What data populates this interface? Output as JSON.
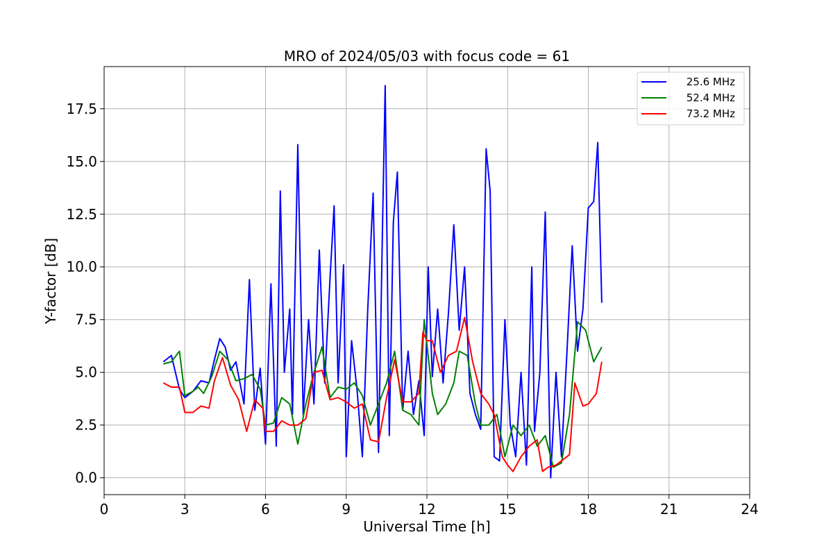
{
  "chart_data": {
    "type": "line",
    "title": "MRO of 2024/05/03 with focus code = 61",
    "xlabel": "Universal Time [h]",
    "ylabel": "Y-factor [dB]",
    "xlim": [
      0,
      24
    ],
    "ylim": [
      -0.8,
      19.5
    ],
    "xticks": [
      0,
      3,
      6,
      9,
      12,
      15,
      18,
      21,
      24
    ],
    "yticks": [
      0.0,
      2.5,
      5.0,
      7.5,
      10.0,
      12.5,
      15.0,
      17.5
    ],
    "xtick_labels": [
      "0",
      "3",
      "6",
      "9",
      "12",
      "15",
      "18",
      "21",
      "24"
    ],
    "ytick_labels": [
      "0.0",
      "2.5",
      "5.0",
      "7.5",
      "10.0",
      "12.5",
      "15.0",
      "17.5"
    ],
    "grid": true,
    "legend_position": "top-right",
    "series": [
      {
        "name": "25.6 MHz",
        "color": "#0000ff",
        "x": [
          2.2,
          2.5,
          2.8,
          3.0,
          3.3,
          3.6,
          3.9,
          4.1,
          4.3,
          4.5,
          4.7,
          4.9,
          5.2,
          5.4,
          5.6,
          5.8,
          6.0,
          6.2,
          6.4,
          6.55,
          6.7,
          6.9,
          7.0,
          7.2,
          7.4,
          7.6,
          7.8,
          8.0,
          8.2,
          8.4,
          8.55,
          8.7,
          8.9,
          9.0,
          9.2,
          9.4,
          9.6,
          9.8,
          10.0,
          10.2,
          10.35,
          10.45,
          10.6,
          10.75,
          10.9,
          11.1,
          11.3,
          11.5,
          11.7,
          11.9,
          12.05,
          12.2,
          12.4,
          12.6,
          12.8,
          13.0,
          13.2,
          13.4,
          13.6,
          13.8,
          14.0,
          14.2,
          14.35,
          14.5,
          14.7,
          14.9,
          15.1,
          15.3,
          15.5,
          15.7,
          15.9,
          16.0,
          16.2,
          16.4,
          16.6,
          16.8,
          17.0,
          17.2,
          17.4,
          17.6,
          17.8,
          18.0,
          18.2,
          18.35,
          18.5
        ],
        "y": [
          5.5,
          5.8,
          4.2,
          3.8,
          4.1,
          4.6,
          4.5,
          5.6,
          6.6,
          6.2,
          5.1,
          5.5,
          3.5,
          9.4,
          3.2,
          5.2,
          1.6,
          9.2,
          1.5,
          13.6,
          5.0,
          8.0,
          3.0,
          15.8,
          3.0,
          7.5,
          3.5,
          10.8,
          4.5,
          9.5,
          12.9,
          4.5,
          10.1,
          1.0,
          6.5,
          4.2,
          1.0,
          8.0,
          13.5,
          1.2,
          12.0,
          18.6,
          2.0,
          12.1,
          14.5,
          3.2,
          6.0,
          3.0,
          4.6,
          2.0,
          10.0,
          4.8,
          8.0,
          4.5,
          7.8,
          12.0,
          7.0,
          10.0,
          4.0,
          3.0,
          2.3,
          15.6,
          13.6,
          1.0,
          0.8,
          7.5,
          2.5,
          1.0,
          5.0,
          0.6,
          10.0,
          2.2,
          5.0,
          12.6,
          0.0,
          5.0,
          1.0,
          5.8,
          11.0,
          6.0,
          8.0,
          12.8,
          13.1,
          15.9,
          8.3
        ]
      },
      {
        "name": "52.4 MHz",
        "color": "#008000",
        "x": [
          2.2,
          2.5,
          2.8,
          3.0,
          3.3,
          3.5,
          3.7,
          4.0,
          4.3,
          4.6,
          4.9,
          5.2,
          5.5,
          5.8,
          6.0,
          6.3,
          6.6,
          6.9,
          7.2,
          7.5,
          7.8,
          8.1,
          8.4,
          8.7,
          9.0,
          9.3,
          9.6,
          9.9,
          10.2,
          10.5,
          10.8,
          11.1,
          11.4,
          11.7,
          11.9,
          12.2,
          12.4,
          12.7,
          13.0,
          13.2,
          13.5,
          13.8,
          14.0,
          14.3,
          14.6,
          14.9,
          15.2,
          15.5,
          15.8,
          16.1,
          16.4,
          16.7,
          17.0,
          17.3,
          17.6,
          17.9,
          18.2,
          18.5
        ],
        "y": [
          5.4,
          5.5,
          6.0,
          3.9,
          4.1,
          4.3,
          4.0,
          4.8,
          6.0,
          5.6,
          4.6,
          4.7,
          4.9,
          4.2,
          2.5,
          2.6,
          3.8,
          3.5,
          1.6,
          3.5,
          5.0,
          6.2,
          3.8,
          4.3,
          4.2,
          4.5,
          3.9,
          2.5,
          3.5,
          4.5,
          6.0,
          3.2,
          3.0,
          2.5,
          7.5,
          4.0,
          3.0,
          3.5,
          4.5,
          6.0,
          5.8,
          3.5,
          2.5,
          2.5,
          3.0,
          1.0,
          2.5,
          2.0,
          2.5,
          1.5,
          2.0,
          0.5,
          0.7,
          3.0,
          7.4,
          7.0,
          5.5,
          6.2
        ]
      },
      {
        "name": "73.2 MHz",
        "color": "#ff0000",
        "x": [
          2.2,
          2.5,
          2.8,
          3.0,
          3.3,
          3.6,
          3.9,
          4.1,
          4.4,
          4.7,
          5.0,
          5.3,
          5.6,
          5.9,
          6.0,
          6.3,
          6.6,
          6.9,
          7.2,
          7.5,
          7.8,
          8.1,
          8.4,
          8.7,
          9.0,
          9.3,
          9.6,
          9.9,
          10.2,
          10.5,
          10.8,
          11.1,
          11.4,
          11.7,
          11.85,
          12.0,
          12.2,
          12.5,
          12.8,
          13.1,
          13.4,
          13.7,
          14.0,
          14.3,
          14.5,
          14.8,
          15.0,
          15.2,
          15.5,
          15.8,
          16.1,
          16.3,
          16.5,
          16.8,
          17.0,
          17.3,
          17.5,
          17.8,
          18.0,
          18.3,
          18.5
        ],
        "y": [
          4.5,
          4.3,
          4.3,
          3.1,
          3.1,
          3.4,
          3.3,
          4.6,
          5.7,
          4.4,
          3.7,
          2.2,
          3.7,
          3.3,
          2.2,
          2.2,
          2.7,
          2.5,
          2.5,
          2.8,
          5.0,
          5.1,
          3.7,
          3.8,
          3.6,
          3.3,
          3.5,
          1.8,
          1.7,
          3.8,
          5.6,
          3.6,
          3.6,
          4.0,
          6.9,
          6.5,
          6.5,
          5.0,
          5.8,
          6.0,
          7.6,
          5.5,
          4.0,
          3.5,
          3.0,
          1.0,
          0.6,
          0.3,
          1.0,
          1.5,
          1.8,
          0.3,
          0.5,
          0.6,
          0.8,
          1.1,
          4.5,
          3.4,
          3.5,
          4.0,
          5.5
        ]
      }
    ]
  }
}
